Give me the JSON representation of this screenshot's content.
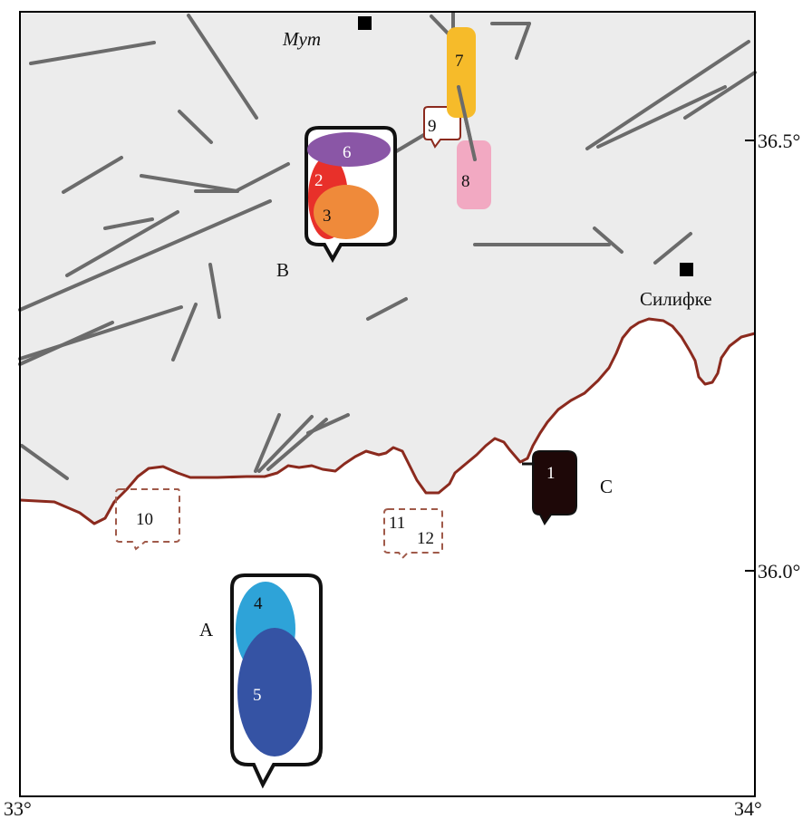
{
  "map": {
    "cities": [
      {
        "name": "Мут",
        "italic": true
      },
      {
        "name": "Силифке",
        "italic": false
      }
    ],
    "group_labels": [
      "A",
      "B",
      "C"
    ],
    "numbers": [
      "1",
      "2",
      "3",
      "4",
      "5",
      "6",
      "7",
      "8",
      "9",
      "10",
      "11",
      "12"
    ],
    "lon_labels": [
      "33°",
      "34°"
    ],
    "lat_labels": [
      "36.5°",
      "36.0°"
    ],
    "colors": {
      "land": "#ececec",
      "coastline": "#8b2a1e",
      "faults": "#6b6b6b",
      "zone_1": "#1e0808",
      "zone_2": "#e8302a",
      "zone_3": "#ef8a3a",
      "zone_4": "#2ea3d8",
      "zone_5": "#3553a4",
      "zone_6": "#8a56a6",
      "zone_7": "#f6bb2a",
      "zone_8": "#f2a9c2"
    }
  }
}
